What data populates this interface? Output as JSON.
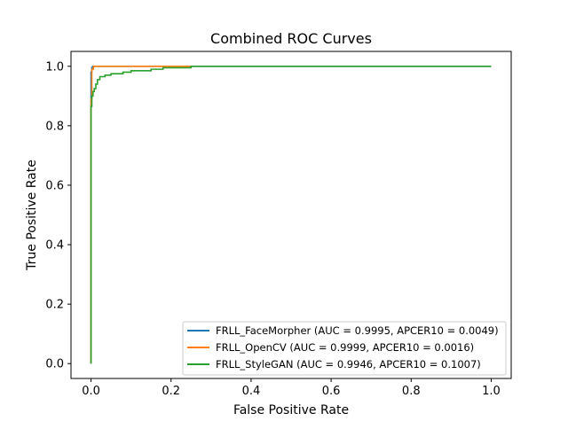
{
  "chart_data": {
    "type": "line",
    "title": "Combined ROC Curves",
    "xlabel": "False Positive Rate",
    "ylabel": "True Positive Rate",
    "xlim": [
      -0.05,
      1.05
    ],
    "ylim": [
      -0.05,
      1.05
    ],
    "xticks": [
      0.0,
      0.2,
      0.4,
      0.6,
      0.8,
      1.0
    ],
    "xtick_labels": [
      "0.0",
      "0.2",
      "0.4",
      "0.6",
      "0.8",
      "1.0"
    ],
    "yticks": [
      0.0,
      0.2,
      0.4,
      0.6,
      0.8,
      1.0
    ],
    "ytick_labels": [
      "0.0",
      "0.2",
      "0.4",
      "0.6",
      "0.8",
      "1.0"
    ],
    "grid": false,
    "legend_position": "lower-right",
    "series": [
      {
        "name": "FRLL_FaceMorpher (AUC = 0.9995, APCER10 = 0.0049)",
        "color": "#1f77b4",
        "x": [
          0.0,
          0.0,
          0.0,
          0.002,
          0.002,
          0.004,
          0.004,
          1.0
        ],
        "y": [
          0.0,
          0.95,
          0.98,
          0.98,
          0.995,
          0.995,
          1.0,
          1.0
        ]
      },
      {
        "name": "FRLL_OpenCV (AUC = 0.9999, APCER10 = 0.0016)",
        "color": "#ff7f0e",
        "x": [
          0.0,
          0.0,
          0.002,
          0.002,
          0.006,
          0.006,
          0.25
        ],
        "y": [
          0.0,
          0.89,
          0.89,
          0.99,
          0.99,
          1.0,
          1.0
        ]
      },
      {
        "name": "FRLL_StyleGAN (AUC = 0.9946, APCER10 = 0.1007)",
        "color": "#2ca02c",
        "x": [
          0.0,
          0.0,
          0.002,
          0.002,
          0.005,
          0.005,
          0.008,
          0.008,
          0.012,
          0.012,
          0.016,
          0.016,
          0.022,
          0.022,
          0.035,
          0.035,
          0.05,
          0.05,
          0.08,
          0.08,
          0.1,
          0.1,
          0.15,
          0.15,
          0.18,
          0.18,
          0.25,
          0.25,
          1.0
        ],
        "y": [
          0.0,
          0.865,
          0.865,
          0.9,
          0.9,
          0.915,
          0.915,
          0.925,
          0.925,
          0.94,
          0.94,
          0.955,
          0.955,
          0.965,
          0.965,
          0.97,
          0.97,
          0.975,
          0.975,
          0.98,
          0.98,
          0.985,
          0.985,
          0.99,
          0.99,
          0.995,
          0.995,
          1.0,
          1.0
        ]
      }
    ]
  }
}
